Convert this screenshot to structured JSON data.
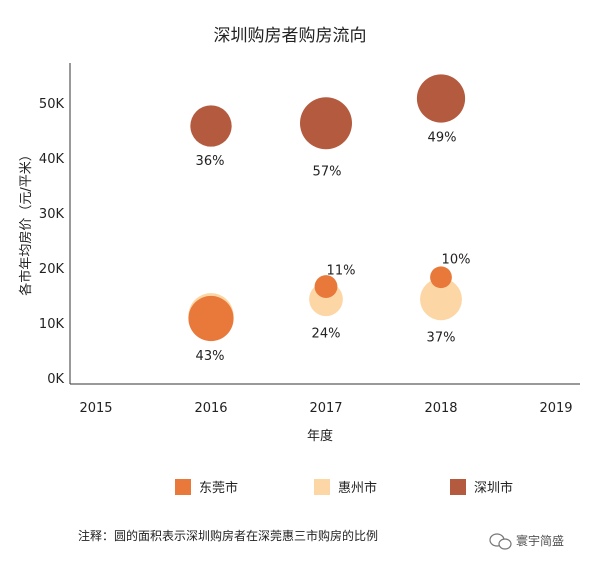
{
  "chart_data": {
    "type": "scatter",
    "title": "深圳购房者购房流向",
    "xlabel": "年度",
    "ylabel": "各市年均房价（元/平米）",
    "x_ticks": [
      "2015",
      "2016",
      "2017",
      "2018",
      "2019"
    ],
    "y_ticks": [
      "0K",
      "10K",
      "20K",
      "30K",
      "40K",
      "50K"
    ],
    "xlim": [
      2015,
      2019
    ],
    "ylim": [
      0,
      50000
    ],
    "grid": false,
    "legend_position": "bottom",
    "series": [
      {
        "name": "东莞市",
        "color": "#e8793a",
        "points": [
          {
            "x": 2016,
            "y": 11000,
            "share": 43,
            "label": "43%"
          },
          {
            "x": 2017,
            "y": 16800,
            "share": 11,
            "label": "11%"
          },
          {
            "x": 2018,
            "y": 18500,
            "share": 10,
            "label": "10%"
          }
        ]
      },
      {
        "name": "惠州市",
        "color": "#fdd6a6",
        "points": [
          {
            "x": 2016,
            "y": 11500,
            "share": 43,
            "label": "43%"
          },
          {
            "x": 2017,
            "y": 14500,
            "share": 24,
            "label": "24%"
          },
          {
            "x": 2018,
            "y": 14500,
            "share": 37,
            "label": "37%"
          }
        ]
      },
      {
        "name": "深圳市",
        "color": "#b35a3f",
        "points": [
          {
            "x": 2016,
            "y": 46000,
            "share": 36,
            "label": "36%"
          },
          {
            "x": 2017,
            "y": 46500,
            "share": 57,
            "label": "57%"
          },
          {
            "x": 2018,
            "y": 51000,
            "share": 49,
            "label": "49%"
          }
        ]
      }
    ],
    "note": "注释：圆的面积表示深圳购房者在深莞惠三市购房的比例"
  },
  "watermark": "寰宇简盛"
}
